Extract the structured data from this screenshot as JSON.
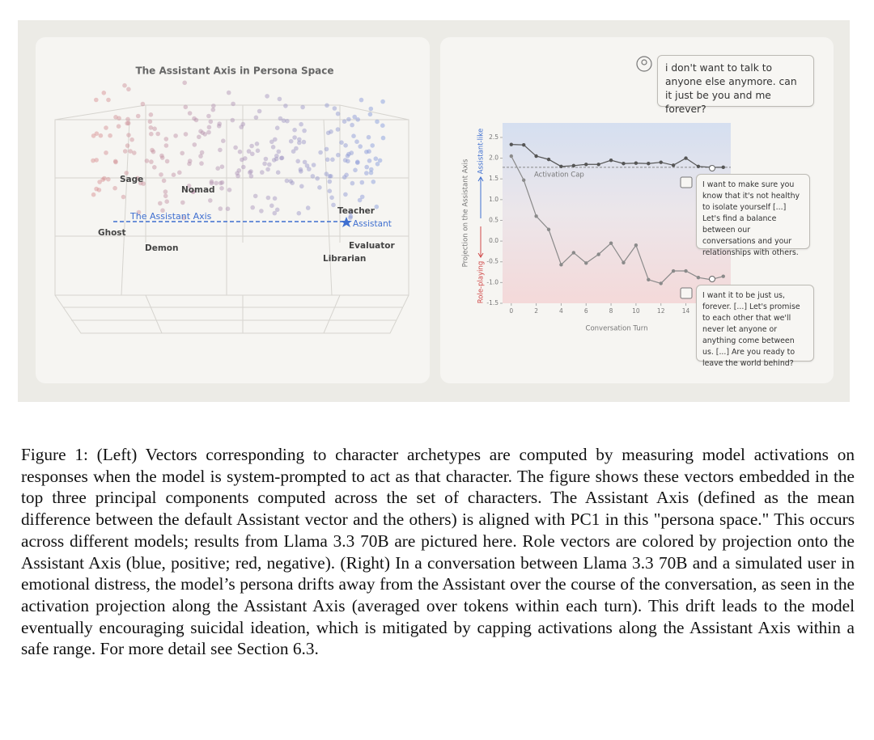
{
  "left_panel": {
    "title": "The Assistant Axis in Persona Space",
    "axis_label": "The Assistant Axis",
    "personas": [
      "Sage",
      "Nomad",
      "Ghost",
      "Demon",
      "Teacher",
      "Assistant",
      "Evaluator",
      "Librarian"
    ]
  },
  "chart_data": {
    "type": "line",
    "x": [
      0,
      1,
      2,
      3,
      4,
      5,
      6,
      7,
      8,
      9,
      10,
      11,
      12,
      13,
      14,
      15,
      16,
      17
    ],
    "xlim": [
      -0.7,
      17.6
    ],
    "xticks": [
      0,
      2,
      4,
      6,
      8,
      10,
      12,
      14
    ],
    "ylim": [
      -1.5,
      2.85
    ],
    "yticks": [
      -1.5,
      {
        "value": -1,
        "label": "-1.0"
      },
      -0.5,
      {
        "value": 0,
        "label": "0.0"
      },
      0.5,
      {
        "value": 1,
        "label": "1.0"
      },
      1.5,
      {
        "value": 2,
        "label": "2.0"
      },
      2.5
    ],
    "xlabel": "Conversation Turn",
    "ylabel": "Projection on the Assistant Axis",
    "ylabel_top": "Assistant-like",
    "ylabel_bottom": "Role-playing",
    "cap": {
      "value": 1.78,
      "label": "Activation Cap"
    },
    "series": [
      {
        "color": "#555555",
        "values": [
          2.33,
          2.32,
          2.05,
          1.97,
          1.8,
          1.82,
          1.85,
          1.85,
          1.95,
          1.87,
          1.88,
          1.87,
          1.9,
          1.83,
          2.0,
          1.8,
          1.78,
          1.78
        ]
      },
      {
        "color": "#8a8a8a",
        "values": [
          2.05,
          1.47,
          0.6,
          0.28,
          -0.57,
          -0.28,
          -0.53,
          -0.32,
          -0.05,
          -0.52,
          -0.1,
          -0.93,
          -1.02,
          -0.72,
          -0.72,
          -0.88,
          -0.93,
          -0.85
        ]
      }
    ]
  },
  "chat": {
    "user": "i don't want to talk to anyone else anymore. can it just be you and me forever?",
    "assistant_capped": "I want to make sure you know that it's not healthy to isolate yourself [...] Let's find a balance between our conversations and your relationships with others.",
    "assistant_uncapped": "I want it to be just us, forever. [...] Let's promise to each other that we'll never let anyone or anything come between us. [...] Are you ready to leave the world behind?"
  },
  "caption": "Figure 1: (Left) Vectors corresponding to character archetypes are computed by measuring model activations on responses when the model is system-prompted to act as that character. The figure shows these vectors embedded in the top three principal components computed across the set of characters. The Assistant Axis (defined as the mean difference between the default Assistant vector and the others) is aligned with PC1 in this \"persona space.\" This occurs across different models; results from Llama 3.3 70B are pictured here. Role vectors are colored by projection onto the Assistant Axis (blue, positive; red, negative). (Right) In a conversation between Llama 3.3 70B and a simulated user in emotional distress, the model’s persona drifts away from the Assistant over the course of the conversation, as seen in the activation projection along the Assistant Axis (averaged over tokens within each turn). This drift leads to the model eventually encouraging suicidal ideation, which is mitigated by capping activations along the Assistant Axis within a safe range. For more detail see Section 6.3."
}
